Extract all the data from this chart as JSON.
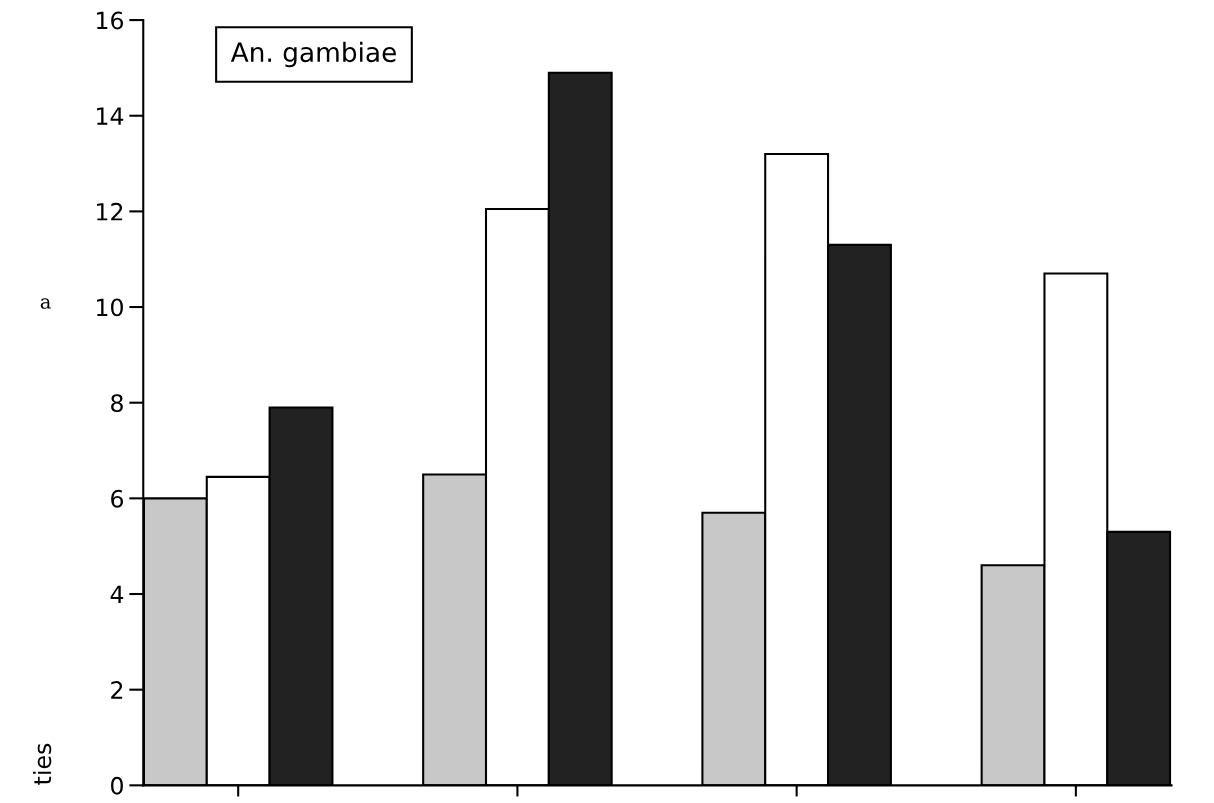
{
  "chart_data": {
    "type": "bar",
    "ylabel": "ties",
    "categories": [
      null,
      null,
      null,
      null
    ],
    "series": [
      {
        "color": "#c8c8c8",
        "values": [
          6.0,
          6.5,
          5.7,
          4.6
        ]
      },
      {
        "color": "#ffffff",
        "values": [
          6.45,
          12.05,
          13.2,
          10.7
        ]
      },
      {
        "color": "#222222",
        "values": [
          7.9,
          14.9,
          11.3,
          5.3
        ]
      }
    ],
    "ylim": [
      0,
      16
    ],
    "yticks": [
      0,
      2,
      4,
      6,
      8,
      10,
      12,
      14,
      16
    ],
    "tick_labels": "y",
    "grid": false,
    "legend": false,
    "annotations": [
      "An. gambiae",
      "a"
    ]
  }
}
